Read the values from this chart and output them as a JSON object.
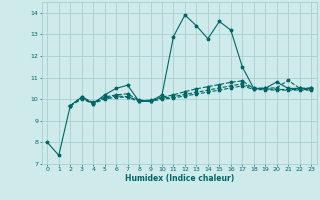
{
  "xlabel": "Humidex (Indice chaleur)",
  "xlim": [
    -0.5,
    23.5
  ],
  "ylim": [
    7,
    14.5
  ],
  "yticks": [
    7,
    8,
    9,
    10,
    11,
    12,
    13,
    14
  ],
  "xticks": [
    0,
    1,
    2,
    3,
    4,
    5,
    6,
    7,
    8,
    9,
    10,
    11,
    12,
    13,
    14,
    15,
    16,
    17,
    18,
    19,
    20,
    21,
    22,
    23
  ],
  "background_color": "#ceeaea",
  "grid_color": "#aacfcf",
  "line_color": "#006666",
  "lines": [
    {
      "x": [
        0,
        1,
        2,
        3,
        4,
        5,
        6,
        7,
        8,
        9,
        10,
        11,
        12,
        13,
        14,
        15,
        16,
        17,
        18,
        19,
        20,
        21,
        22,
        23
      ],
      "y": [
        8.0,
        7.4,
        9.7,
        10.1,
        9.8,
        10.2,
        10.5,
        10.65,
        9.9,
        9.9,
        10.2,
        12.9,
        13.9,
        13.4,
        12.8,
        13.6,
        13.2,
        11.5,
        10.5,
        10.5,
        10.8,
        10.5,
        10.5,
        10.5
      ],
      "linestyle": "-"
    },
    {
      "x": [
        2,
        3,
        4,
        5,
        6,
        7,
        8,
        9,
        10,
        11,
        12,
        13,
        14,
        15,
        16,
        17,
        18,
        19,
        20,
        21,
        22,
        23
      ],
      "y": [
        9.7,
        10.1,
        9.85,
        10.1,
        10.2,
        10.25,
        9.95,
        9.95,
        10.1,
        10.2,
        10.35,
        10.48,
        10.58,
        10.68,
        10.78,
        10.85,
        10.5,
        10.52,
        10.52,
        10.88,
        10.5,
        10.52
      ],
      "linestyle": "--"
    },
    {
      "x": [
        2,
        3,
        4,
        5,
        6,
        7,
        8,
        9,
        10,
        11,
        12,
        13,
        14,
        15,
        16,
        17,
        18,
        19,
        20,
        21,
        22,
        23
      ],
      "y": [
        9.7,
        10.05,
        9.82,
        10.05,
        10.15,
        10.12,
        9.93,
        9.93,
        10.05,
        10.12,
        10.22,
        10.32,
        10.42,
        10.52,
        10.62,
        10.72,
        10.48,
        10.48,
        10.45,
        10.45,
        10.45,
        10.45
      ],
      "linestyle": "--"
    },
    {
      "x": [
        2,
        3,
        4,
        5,
        6,
        7,
        8,
        9,
        10,
        11,
        12,
        13,
        14,
        15,
        16,
        17,
        18,
        19,
        20,
        21,
        22,
        23
      ],
      "y": [
        9.7,
        10.0,
        9.8,
        10.0,
        10.1,
        10.08,
        9.9,
        9.9,
        10.0,
        10.06,
        10.15,
        10.24,
        10.33,
        10.42,
        10.52,
        10.62,
        10.45,
        10.44,
        10.42,
        10.42,
        10.42,
        10.42
      ],
      "linestyle": "--"
    }
  ]
}
